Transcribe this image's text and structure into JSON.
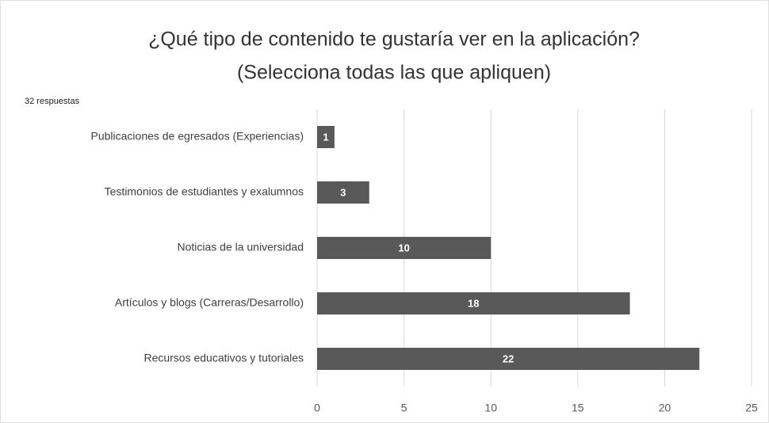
{
  "chart_data": {
    "type": "hbar",
    "title": [
      "¿Qué tipo de contenido te gustaría ver en la aplicación?",
      "(Selecciona todas las que apliquen)"
    ],
    "subtitle": "32 respuestas",
    "categories": [
      "Publicaciones de egresados (Experiencias)",
      "Testimonios de estudiantes y exalumnos",
      "Noticias de la universidad",
      "Artículos y blogs (Carreras/Desarrollo)",
      "Recursos educativos y tutoriales"
    ],
    "values": [
      1,
      3,
      10,
      18,
      22
    ],
    "color": "#595959",
    "xlim": [
      0,
      25
    ],
    "xticks": [
      0,
      5,
      10,
      15,
      20,
      25
    ],
    "grid": true
  }
}
